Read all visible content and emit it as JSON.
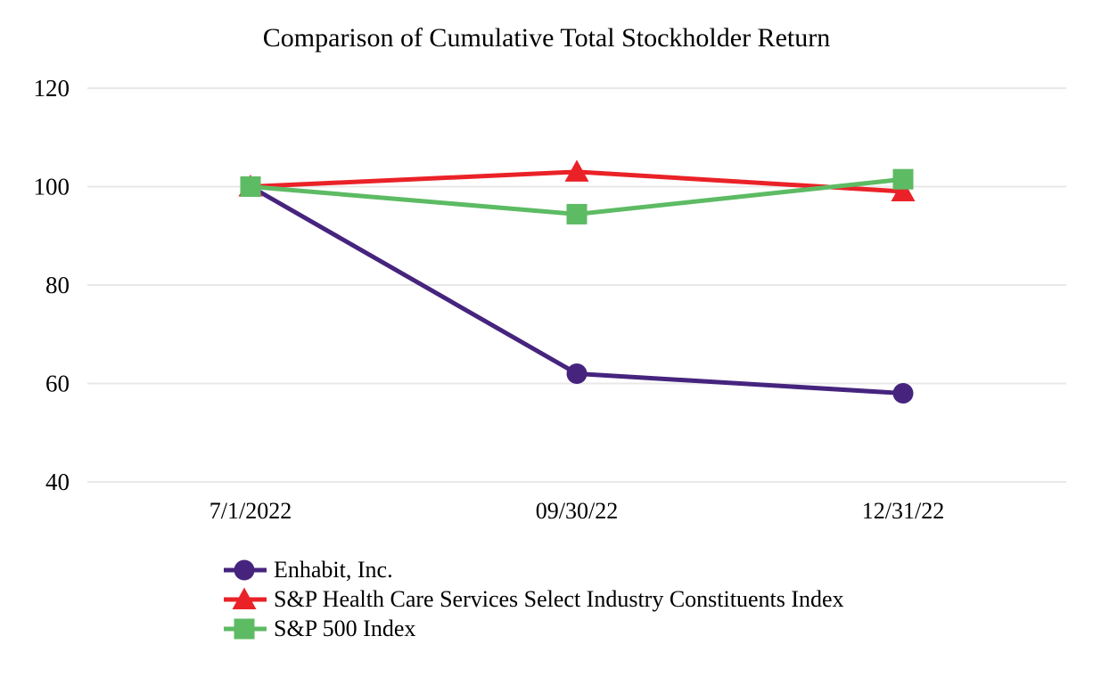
{
  "title": "Comparison of Cumulative Total Stockholder Return",
  "chart_data": {
    "type": "line",
    "title": "Comparison of Cumulative Total Stockholder Return",
    "categories": [
      "7/1/2022",
      "09/30/22",
      "12/31/22"
    ],
    "series": [
      {
        "name": "Enhabit, Inc.",
        "marker": "circle",
        "color": "#46247E",
        "values": [
          100,
          62,
          58
        ]
      },
      {
        "name": "S&P Health Care Services Select Industry Constituents Index",
        "marker": "triangle",
        "color": "#EA2228",
        "values": [
          100,
          103,
          99
        ]
      },
      {
        "name": "S&P 500 Index",
        "marker": "square",
        "color": "#5DBB63",
        "values": [
          100,
          94.4,
          101.5
        ]
      }
    ],
    "xlabel": "",
    "ylabel": "",
    "yticks": [
      40,
      60,
      80,
      100,
      120
    ],
    "ylim": [
      40,
      120
    ],
    "grid": "horizontal",
    "gridline_color": "#E8E8E8",
    "text_color": "#000000",
    "legend_position": "bottom-left"
  }
}
